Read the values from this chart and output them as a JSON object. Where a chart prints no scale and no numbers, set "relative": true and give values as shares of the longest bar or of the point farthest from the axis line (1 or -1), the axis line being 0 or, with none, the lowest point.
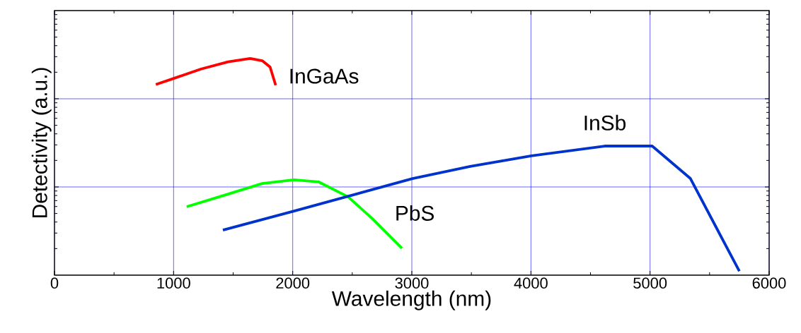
{
  "chart_data": {
    "type": "line",
    "relative": true,
    "xlabel": "Wavelength (nm)",
    "ylabel": "Detectivity (a.u.)",
    "xlim": [
      0,
      6000
    ],
    "xticks": [
      0,
      1000,
      2000,
      3000,
      4000,
      5000,
      6000
    ],
    "grid": true,
    "legend": false,
    "marker": "none",
    "line_style": "solid",
    "series": [
      {
        "name": "InGaAs",
        "color": "#ff0000",
        "x": [
          851,
          1006,
          1232,
          1458,
          1643,
          1744,
          1810,
          1857
        ],
        "values": [
          0.88,
          0.909,
          0.952,
          0.985,
          1.0,
          0.99,
          0.961,
          0.877
        ]
      },
      {
        "name": "PbS",
        "color": "#00ff00",
        "x": [
          1110,
          1438,
          1744,
          2012,
          2220,
          2464,
          2670,
          2917
        ],
        "values": [
          0.316,
          0.371,
          0.423,
          0.44,
          0.43,
          0.362,
          0.26,
          0.124
        ]
      },
      {
        "name": "InSb",
        "color": "#0033cc",
        "x": [
          1414,
          2012,
          3006,
          3490,
          4004,
          4619,
          5018,
          5339,
          5750
        ],
        "values": [
          0.208,
          0.296,
          0.446,
          0.502,
          0.551,
          0.596,
          0.596,
          0.446,
          0.018
        ]
      }
    ]
  }
}
